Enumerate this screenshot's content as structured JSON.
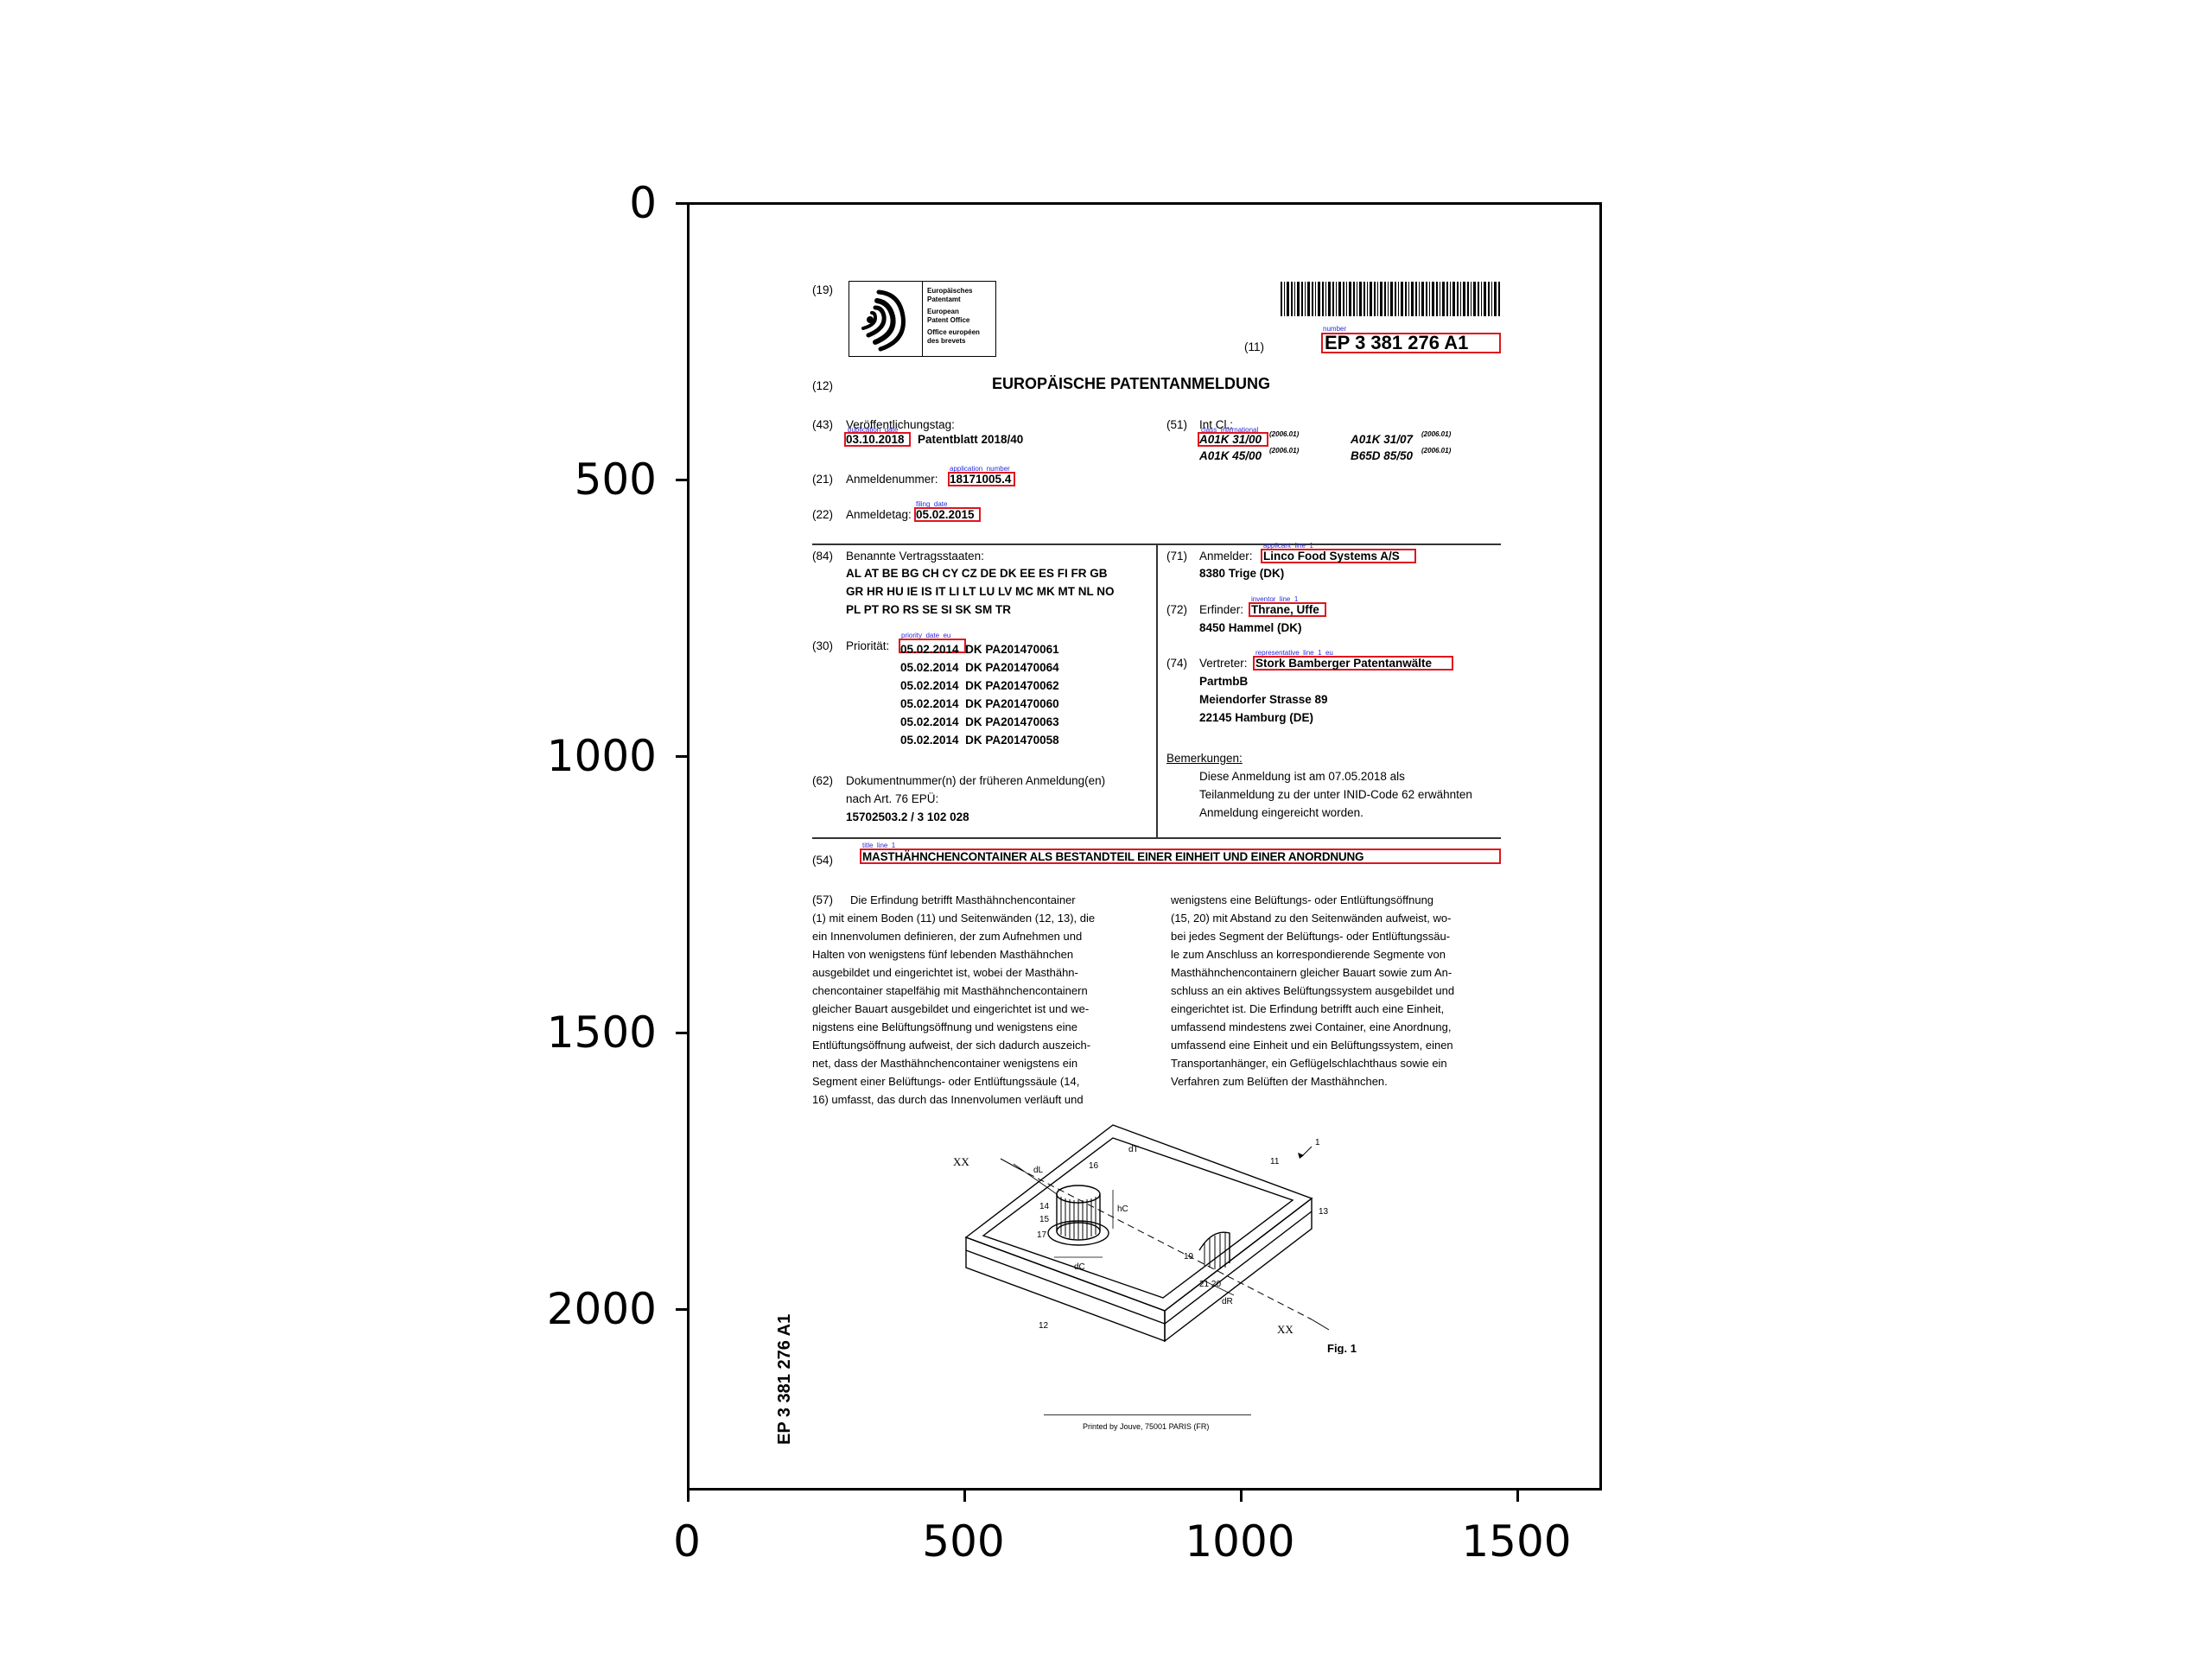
{
  "axes": {
    "y_ticks": [
      "0",
      "500",
      "1000",
      "1500",
      "2000"
    ],
    "x_ticks": [
      "0",
      "500",
      "1000",
      "1500"
    ]
  },
  "document": {
    "code_19": "(19)",
    "epo_logo_text": [
      "Europäisches",
      "Patentamt",
      "European",
      "Patent Office",
      "Office européen",
      "des brevets"
    ],
    "code_11": "(11)",
    "publication_number": "EP 3 381 276 A1",
    "code_12": "(12)",
    "doc_type": "EUROPÄISCHE PATENTANMELDUNG",
    "code_43": "(43)",
    "pub_date_label": "Veröffentlichungstag:",
    "pub_date": "03.10.2018",
    "patentblatt": "Patentblatt 2018/40",
    "code_51": "(51)",
    "int_cl_label": "Int Cl.:",
    "ipc": [
      {
        "code": "A01K 31/00",
        "version": "(2006.01)"
      },
      {
        "code": "A01K 31/07",
        "version": "(2006.01)"
      },
      {
        "code": "A01K 45/00",
        "version": "(2006.01)"
      },
      {
        "code": "B65D 85/50",
        "version": "(2006.01)"
      }
    ],
    "code_21": "(21)",
    "app_number_label": "Anmeldenummer:",
    "app_number": "18171005.4",
    "code_22": "(22)",
    "filing_date_label": "Anmeldetag:",
    "filing_date": "05.02.2015",
    "code_84": "(84)",
    "states_label": "Benannte Vertragsstaaten:",
    "states_lines": [
      "AL AT BE BG CH CY CZ DE DK EE ES FI FR GB",
      "GR HR HU IE IS IT LI LT LU LV MC MK MT NL NO",
      "PL PT RO RS SE SI SK SM TR"
    ],
    "code_30": "(30)",
    "priority_label": "Priorität:",
    "priorities": [
      {
        "date": "05.02.2014",
        "number": "DK PA201470061"
      },
      {
        "date": "05.02.2014",
        "number": "DK PA201470064"
      },
      {
        "date": "05.02.2014",
        "number": "DK PA201470062"
      },
      {
        "date": "05.02.2014",
        "number": "DK PA201470060"
      },
      {
        "date": "05.02.2014",
        "number": "DK PA201470063"
      },
      {
        "date": "05.02.2014",
        "number": "DK PA201470058"
      }
    ],
    "code_62": "(62)",
    "earlier_label_1": "Dokumentnummer(n) der früheren Anmeldung(en)",
    "earlier_label_2": "nach Art. 76 EPÜ:",
    "earlier_value": "15702503.2 / 3 102 028",
    "code_71": "(71)",
    "applicant_label": "Anmelder:",
    "applicant": "Linco Food Systems A/S",
    "applicant_city": "8380 Trige (DK)",
    "code_72": "(72)",
    "inventor_label": "Erfinder:",
    "inventor": "Thrane, Uffe",
    "inventor_city": "8450 Hammel (DK)",
    "code_74": "(74)",
    "representative_label": "Vertreter:",
    "representative": "Stork Bamberger Patentanwälte",
    "representative_lines": [
      "PartmbB",
      "Meiendorfer Strasse 89",
      "22145 Hamburg (DE)"
    ],
    "remarks_label": "Bemerkungen:",
    "remarks_lines": [
      "Diese Anmeldung ist am 07.05.2018 als",
      "Teilanmeldung zu der unter INID-Code 62 erwähnten",
      "Anmeldung eingereicht worden."
    ],
    "code_54": "(54)",
    "title": "MASTHÄHNCHENCONTAINER ALS BESTANDTEIL EINER EINHEIT UND EINER ANORDNUNG",
    "code_57": "(57)",
    "abstract_left": [
      "Die Erfindung betrifft Masthähnchencontainer",
      "(1) mit einem Boden (11) und Seitenwänden (12, 13), die",
      "ein Innenvolumen definieren, der zum Aufnehmen und",
      "Halten von wenigstens fünf lebenden Masthähnchen",
      "ausgebildet und eingerichtet ist, wobei der Masthähn-",
      "chencontainer stapelfähig mit Masthähnchencontainern",
      "gleicher Bauart ausgebildet und eingerichtet ist und we-",
      "nigstens eine Belüftungsöffnung und wenigstens eine",
      "Entlüftungsöffnung aufweist, der sich dadurch auszeich-",
      "net, dass der Masthähnchencontainer wenigstens ein",
      "Segment einer Belüftungs- oder Entlüftungssäule (14,",
      "16) umfasst, das durch das Innenvolumen verläuft und"
    ],
    "abstract_right": [
      "wenigstens eine Belüftungs- oder Entlüftungsöffnung",
      "(15, 20) mit Abstand zu den Seitenwänden aufweist, wo-",
      "bei jedes Segment der Belüftungs- oder Entlüftungssäu-",
      "le zum Anschluss an korrespondierende Segmente von",
      "Masthähnchencontainern gleicher Bauart sowie zum An-",
      "schluss an ein aktives Belüftungssystem ausgebildet und",
      "eingerichtet ist. Die Erfindung betrifft auch eine Einheit,",
      "umfassend mindestens zwei Container, eine Anordnung,",
      "umfassend eine Einheit und ein Belüftungssystem, einen",
      "Transportanhänger, ein Geflügelschlachthaus sowie ein",
      "Verfahren zum Belüften der Masthähnchen."
    ],
    "figure_caption": "Fig. 1",
    "figure_labels": {
      "ref_1": "1",
      "ref_11": "11",
      "ref_12": "12",
      "ref_13": "13",
      "ref_14": "14",
      "ref_15": "15",
      "ref_16": "16",
      "ref_17": "17",
      "ref_19": "19",
      "ref_21_20": "21 20",
      "dT": "dT",
      "dL": "dL",
      "hC": "hC",
      "dC": "dC",
      "dR": "dR",
      "xx": "XX"
    },
    "spine_number": "EP 3 381 276 A1",
    "printer": "Printed by Jouve, 75001 PARIS (FR)"
  },
  "annotations": {
    "number": "number",
    "publication_date": "publication_date",
    "application_number": "application_number",
    "filing_date": "filing_date",
    "class_international": "class_international",
    "applicant_line_1": "applicant_line_1",
    "inventor_line_1": "inventor_line_1",
    "representative_line_1_eu": "representative_line_1_eu",
    "priority_date_eu": "priority_date_eu",
    "title_line_1": "title_line_1"
  },
  "colors": {
    "annotation_box": "#e0141e",
    "annotation_label": "#2a2ae0"
  }
}
